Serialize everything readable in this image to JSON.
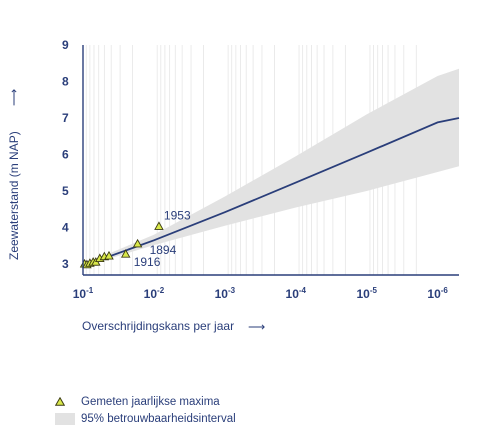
{
  "chart_data": {
    "type": "line",
    "x_scale": "log-reciprocal",
    "xlabel": "Overschrijdingskans per jaar",
    "ylabel": "Zeewaterstand (m NAP)",
    "xlim": [
      0.1,
      5e-07
    ],
    "ylim": [
      2.7,
      9
    ],
    "x_ticks": [
      {
        "value": 0.1,
        "base": "10",
        "exp": "-1"
      },
      {
        "value": 0.01,
        "base": "10",
        "exp": "-2"
      },
      {
        "value": 0.001,
        "base": "10",
        "exp": "-3"
      },
      {
        "value": 0.0001,
        "base": "10",
        "exp": "-4"
      },
      {
        "value": 1e-05,
        "base": "10",
        "exp": "-5"
      },
      {
        "value": 1e-06,
        "base": "10",
        "exp": "-6"
      }
    ],
    "y_ticks": [
      3,
      4,
      5,
      6,
      7,
      8,
      9
    ],
    "grid": "vertical minor lines",
    "series": [
      {
        "name": "",
        "kind": "line",
        "color": "#2a3e7a",
        "points": [
          {
            "x": 0.1,
            "y": 2.95
          },
          {
            "x": 0.01,
            "y": 3.65
          },
          {
            "x": 0.001,
            "y": 4.42
          },
          {
            "x": 0.0001,
            "y": 5.23
          },
          {
            "x": 1e-05,
            "y": 6.05
          },
          {
            "x": 1e-06,
            "y": 6.88
          },
          {
            "x": 5e-07,
            "y": 7.0
          }
        ]
      },
      {
        "name": "95% betrouwbaarheidsinterval",
        "kind": "band",
        "color": "#e2e2e2",
        "points": [
          {
            "x": 0.1,
            "lower": 2.93,
            "upper": 2.99
          },
          {
            "x": 0.01,
            "lower": 3.52,
            "upper": 3.8
          },
          {
            "x": 0.001,
            "lower": 4.05,
            "upper": 4.85
          },
          {
            "x": 0.0001,
            "lower": 4.55,
            "upper": 5.95
          },
          {
            "x": 1e-05,
            "lower": 5.0,
            "upper": 7.1
          },
          {
            "x": 1e-06,
            "lower": 5.52,
            "upper": 8.15
          },
          {
            "x": 5e-07,
            "lower": 5.68,
            "upper": 8.35
          }
        ]
      },
      {
        "name": "Gemeten jaarlijkse maxima",
        "kind": "scatter",
        "marker": "triangle",
        "color": "#d9e84a",
        "points": [
          {
            "x": 0.095,
            "y": 3.0
          },
          {
            "x": 0.088,
            "y": 2.98
          },
          {
            "x": 0.08,
            "y": 3.02
          },
          {
            "x": 0.072,
            "y": 3.05
          },
          {
            "x": 0.066,
            "y": 3.05
          },
          {
            "x": 0.058,
            "y": 3.15
          },
          {
            "x": 0.05,
            "y": 3.2
          },
          {
            "x": 0.043,
            "y": 3.22
          },
          {
            "x": 0.025,
            "y": 3.27
          },
          {
            "x": 0.017,
            "y": 3.55
          },
          {
            "x": 0.0085,
            "y": 4.03
          }
        ]
      }
    ],
    "annotations": [
      {
        "text": "1953",
        "x": 0.0085,
        "y": 4.03
      },
      {
        "text": "1894",
        "x": 0.017,
        "y": 3.55
      },
      {
        "text": "1916",
        "x": 0.025,
        "y": 3.27
      }
    ],
    "arrow_glyph": "⟶"
  },
  "legend": {
    "placement": "bottom-left",
    "items": [
      {
        "label": "Gemeten jaarlijkse maxima",
        "symbol": "triangle-icon"
      },
      {
        "label": "95% betrouwbaarheidsinterval",
        "symbol": "band-swatch"
      }
    ]
  },
  "colors": {
    "axis": "#2a3e7a",
    "band": "#e2e2e2",
    "grid": "#e6e6e6",
    "marker_fill": "#d9e84a",
    "marker_stroke": "#3a3a10"
  }
}
